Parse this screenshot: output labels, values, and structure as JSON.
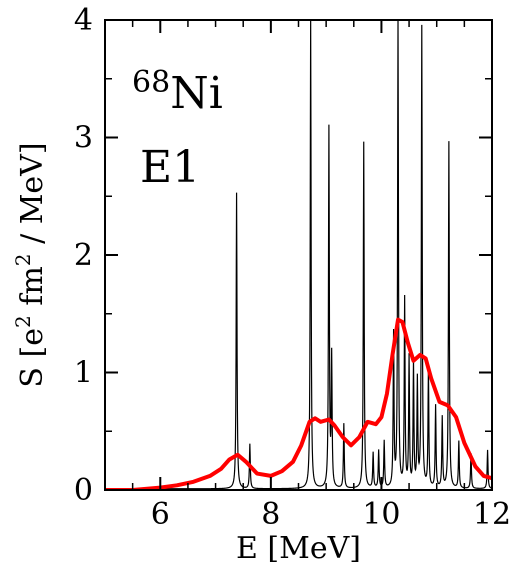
{
  "chart_data": {
    "type": "line",
    "xlabel": "E [MeV]",
    "ylabel_parts": [
      "S [e",
      "2",
      " fm",
      "2",
      " / MeV]"
    ],
    "xlim": [
      5,
      12
    ],
    "ylim": [
      0,
      4
    ],
    "xticks": [
      6,
      8,
      10,
      12
    ],
    "yticks": [
      0,
      1,
      2,
      3,
      4
    ],
    "xtick_labels": [
      "6",
      "8",
      "10",
      "12"
    ],
    "ytick_labels": [
      "0",
      "1",
      "2",
      "3",
      "4"
    ],
    "minor_xticks": [
      5,
      5.5,
      6.5,
      7,
      7.5,
      8.5,
      9,
      9.5,
      10.5,
      11,
      11.5
    ],
    "minor_yticks": [
      0.5,
      1.5,
      2.5,
      3.5
    ],
    "grid": false,
    "legend": "none",
    "annotations": {
      "mass_number": "68",
      "element": "Ni",
      "multipolarity": "E1"
    },
    "series": [
      {
        "style": "thin-black",
        "color": "#000000",
        "background": 0.01,
        "width": 0.009,
        "peaks": [
          {
            "x": 7.38,
            "y": 2.52
          },
          {
            "x": 7.62,
            "y": 0.38
          },
          {
            "x": 8.72,
            "y": 4.0
          },
          {
            "x": 9.05,
            "y": 3.06
          },
          {
            "x": 9.1,
            "y": 1.1
          },
          {
            "x": 9.32,
            "y": 0.55
          },
          {
            "x": 9.68,
            "y": 2.95
          },
          {
            "x": 9.85,
            "y": 0.3
          },
          {
            "x": 9.95,
            "y": 0.32
          },
          {
            "x": 10.05,
            "y": 0.4
          },
          {
            "x": 10.22,
            "y": 1.3
          },
          {
            "x": 10.3,
            "y": 4.0
          },
          {
            "x": 10.42,
            "y": 1.6
          },
          {
            "x": 10.5,
            "y": 1.1
          },
          {
            "x": 10.58,
            "y": 1.05
          },
          {
            "x": 10.65,
            "y": 0.9
          },
          {
            "x": 10.73,
            "y": 3.92
          },
          {
            "x": 10.85,
            "y": 1.0
          },
          {
            "x": 10.98,
            "y": 0.7
          },
          {
            "x": 11.1,
            "y": 0.6
          },
          {
            "x": 11.22,
            "y": 2.95
          },
          {
            "x": 11.4,
            "y": 0.4
          },
          {
            "x": 11.62,
            "y": 0.3
          },
          {
            "x": 11.92,
            "y": 0.33
          }
        ]
      },
      {
        "style": "thick-red",
        "color": "#ff0000",
        "x": [
          5.0,
          5.5,
          6.0,
          6.3,
          6.6,
          6.9,
          7.1,
          7.25,
          7.4,
          7.55,
          7.75,
          8.0,
          8.2,
          8.4,
          8.55,
          8.7,
          8.8,
          8.9,
          9.05,
          9.15,
          9.3,
          9.45,
          9.6,
          9.75,
          9.9,
          10.0,
          10.1,
          10.2,
          10.3,
          10.38,
          10.48,
          10.58,
          10.7,
          10.8,
          10.9,
          11.05,
          11.2,
          11.35,
          11.5,
          11.7,
          11.85,
          12.0
        ],
        "y": [
          0.0,
          0.0,
          0.02,
          0.04,
          0.07,
          0.12,
          0.18,
          0.26,
          0.3,
          0.24,
          0.14,
          0.12,
          0.16,
          0.24,
          0.38,
          0.58,
          0.61,
          0.58,
          0.6,
          0.55,
          0.45,
          0.38,
          0.45,
          0.58,
          0.56,
          0.62,
          0.82,
          1.15,
          1.45,
          1.43,
          1.25,
          1.1,
          1.15,
          1.12,
          0.95,
          0.75,
          0.72,
          0.62,
          0.4,
          0.2,
          0.12,
          0.1
        ]
      }
    ]
  }
}
